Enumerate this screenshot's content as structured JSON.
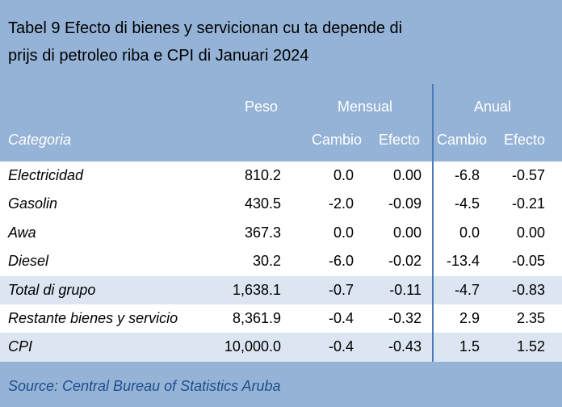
{
  "title": {
    "line1": "Tabel 9 Efecto di bienes y servicionan cu ta depende di",
    "line2": "prijs di petroleo riba e CPI di Januari 2024"
  },
  "header": {
    "peso": "Peso",
    "mensual": "Mensual",
    "anual": "Anual",
    "categoria": "Categoria",
    "cambio_m": "Cambio",
    "efecto_m": "Efecto",
    "cambio_a": "Cambio",
    "efecto_a": "Efecto"
  },
  "rows": [
    {
      "categoria": "Electricidad",
      "peso": "810.2",
      "m_cambio": "0.0",
      "m_efecto": "0.00",
      "a_cambio": "-6.8",
      "a_efecto": "-0.57"
    },
    {
      "categoria": "Gasolin",
      "peso": "430.5",
      "m_cambio": "-2.0",
      "m_efecto": "-0.09",
      "a_cambio": "-4.5",
      "a_efecto": "-0.21"
    },
    {
      "categoria": "Awa",
      "peso": "367.3",
      "m_cambio": "0.0",
      "m_efecto": "0.00",
      "a_cambio": "0.0",
      "a_efecto": "0.00"
    },
    {
      "categoria": "Diesel",
      "peso": "30.2",
      "m_cambio": "-6.0",
      "m_efecto": "-0.02",
      "a_cambio": "-13.4",
      "a_efecto": "-0.05"
    },
    {
      "categoria": "Total di grupo",
      "peso": "1,638.1",
      "m_cambio": "-0.7",
      "m_efecto": "-0.11",
      "a_cambio": "-4.7",
      "a_efecto": "-0.83"
    },
    {
      "categoria": "Restante bienes y servicio",
      "peso": "8,361.9",
      "m_cambio": "-0.4",
      "m_efecto": "-0.32",
      "a_cambio": "2.9",
      "a_efecto": "2.35"
    },
    {
      "categoria": "CPI",
      "peso": "10,000.0",
      "m_cambio": "-0.4",
      "m_efecto": "-0.43",
      "a_cambio": "1.5",
      "a_efecto": "1.52"
    }
  ],
  "source": "Source: Central Bureau of Statistics Aruba",
  "colors": {
    "background": "#95b3d7",
    "row_light": "#ffffff",
    "row_alt": "#dce6f2",
    "source_text": "#1f4e8c"
  }
}
